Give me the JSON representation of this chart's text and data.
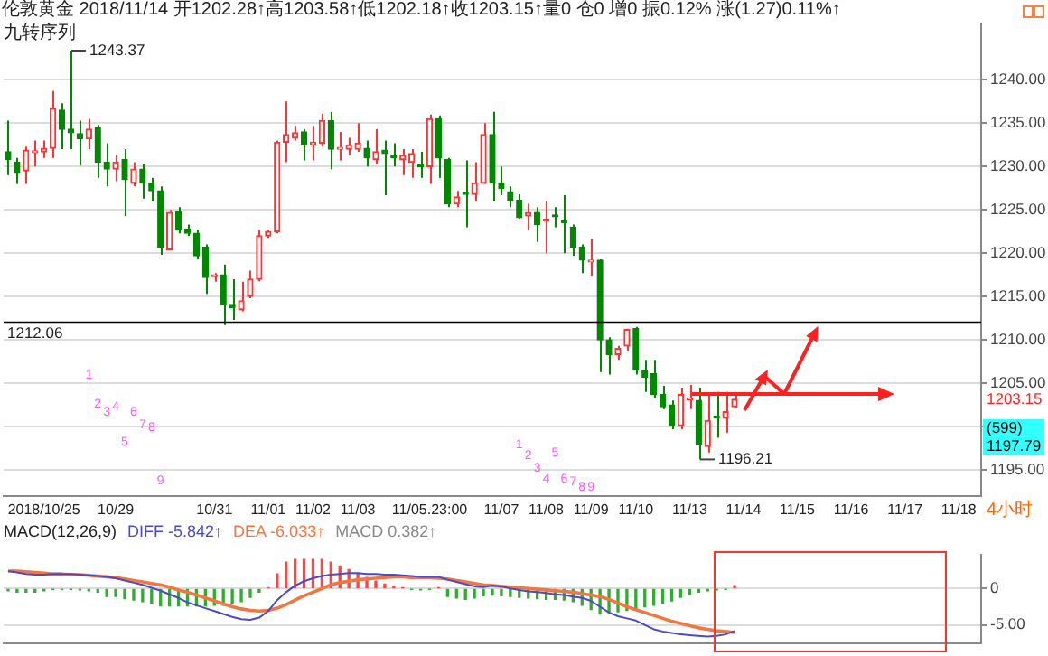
{
  "chart_data": [
    {
      "type": "candlestick",
      "title": "伦敦黄金 2018/11/14 开1202.28↑高1203.58↑低1202.18↑收1203.15↑量0 仓0 增0 振0.12% 涨(1.27)0.11%↑",
      "subtitle": "九转序列",
      "categories": [
        null,
        null,
        null,
        null,
        "2018/10/25",
        null,
        null,
        null,
        null,
        null,
        null,
        null,
        "10/29",
        null,
        null,
        null,
        null,
        null,
        null,
        null,
        null,
        null,
        null,
        "10/31",
        null,
        null,
        null,
        null,
        null,
        "11/01",
        null,
        null,
        null,
        null,
        "11/02",
        null,
        null,
        null,
        null,
        "11/03",
        null,
        null,
        null,
        null,
        null,
        null,
        null,
        "11/05.23:00",
        null,
        null,
        null,
        null,
        null,
        null,
        null,
        "11/07",
        null,
        null,
        null,
        null,
        "11/08",
        null,
        null,
        null,
        null,
        "11/09",
        null,
        null,
        null,
        null,
        "11/10",
        null,
        null,
        null,
        null,
        null,
        "11/13",
        null,
        null,
        null,
        null,
        null,
        "11/14",
        null,
        null,
        null,
        null,
        null,
        "11/15",
        null,
        null,
        null,
        null,
        null,
        "11/16",
        null,
        null,
        null,
        null,
        null,
        "11/17",
        null,
        null,
        null,
        null,
        null,
        "11/18",
        null,
        null
      ],
      "ohlc": [
        [
          1231.7,
          1235.3,
          1229.0,
          1230.8
        ],
        [
          1230.5,
          1231.0,
          1228.0,
          1229.2
        ],
        [
          1229.5,
          1232.3,
          1228.0,
          1231.9
        ],
        [
          1231.6,
          1233.0,
          1230.0,
          1231.7
        ],
        [
          1231.7,
          1233.0,
          1231.0,
          1232.1
        ],
        [
          1232.1,
          1238.7,
          1231.0,
          1236.7
        ],
        [
          1236.5,
          1237.3,
          1232.0,
          1234.3
        ],
        [
          1234.3,
          1243.37,
          1232.0,
          1233.9
        ],
        [
          1233.8,
          1235.3,
          1230.1,
          1233.2
        ],
        [
          1233.2,
          1235.5,
          1232.0,
          1234.3
        ],
        [
          1234.5,
          1234.8,
          1228.7,
          1230.5
        ],
        [
          1230.5,
          1232.7,
          1227.7,
          1229.7
        ],
        [
          1229.7,
          1231.3,
          1228.3,
          1230.5
        ],
        [
          1230.8,
          1232.0,
          1224.3,
          1228.5
        ],
        [
          1228.1,
          1230.5,
          1227.7,
          1229.7
        ],
        [
          1229.7,
          1230.3,
          1226.3,
          1228.1
        ],
        [
          1228.1,
          1228.7,
          1226.0,
          1227.2
        ],
        [
          1227.2,
          1227.7,
          1219.8,
          1220.7
        ],
        [
          1220.4,
          1225.0,
          1220.4,
          1224.7
        ],
        [
          1224.8,
          1225.3,
          1222.3,
          1222.7
        ],
        [
          1222.8,
          1223.3,
          1222.0,
          1222.3
        ],
        [
          1222.3,
          1222.7,
          1219.3,
          1219.7
        ],
        [
          1220.7,
          1221.0,
          1215.3,
          1217.2
        ],
        [
          1217.3,
          1217.7,
          1216.7,
          1217.5
        ],
        [
          1217.5,
          1218.7,
          1211.7,
          1214.1
        ],
        [
          1214.1,
          1217.0,
          1212.3,
          1213.7
        ],
        [
          1213.5,
          1216.7,
          1213.3,
          1214.5
        ],
        [
          1215.0,
          1218.0,
          1214.8,
          1217.0
        ],
        [
          1217.0,
          1222.7,
          1216.8,
          1222.0
        ],
        [
          1222.0,
          1222.7,
          1221.8,
          1222.5
        ],
        [
          1222.5,
          1233.0,
          1222.3,
          1232.8
        ],
        [
          1232.8,
          1237.5,
          1230.5,
          1233.7
        ],
        [
          1233.3,
          1234.7,
          1233.0,
          1233.9
        ],
        [
          1234.0,
          1234.3,
          1230.7,
          1232.5
        ],
        [
          1232.5,
          1234.7,
          1230.7,
          1232.8
        ],
        [
          1232.7,
          1236.1,
          1232.3,
          1235.3
        ],
        [
          1235.3,
          1236.3,
          1229.7,
          1232.0
        ],
        [
          1232.0,
          1234.0,
          1230.7,
          1232.1
        ],
        [
          1232.0,
          1233.3,
          1231.3,
          1232.5
        ],
        [
          1232.0,
          1235.0,
          1231.7,
          1232.7
        ],
        [
          1232.1,
          1233.0,
          1230.0,
          1231.0
        ],
        [
          1230.8,
          1234.3,
          1230.3,
          1231.7
        ],
        [
          1231.9,
          1233.0,
          1226.7,
          1231.5
        ],
        [
          1231.3,
          1232.7,
          1230.0,
          1231.0
        ],
        [
          1230.8,
          1232.0,
          1229.0,
          1231.3
        ],
        [
          1230.5,
          1232.0,
          1228.7,
          1231.5
        ],
        [
          1230.1,
          1231.7,
          1228.7,
          1230.0
        ],
        [
          1230.0,
          1236.0,
          1228.0,
          1235.5
        ],
        [
          1235.5,
          1235.9,
          1228.7,
          1231.0
        ],
        [
          1230.8,
          1231.0,
          1225.3,
          1225.7
        ],
        [
          1225.7,
          1227.2,
          1225.3,
          1226.5
        ],
        [
          1227.0,
          1230.7,
          1223.0,
          1226.8
        ],
        [
          1226.8,
          1230.5,
          1226.0,
          1228.1
        ],
        [
          1228.1,
          1235.0,
          1228.0,
          1233.7
        ],
        [
          1233.7,
          1236.3,
          1226.0,
          1228.1
        ],
        [
          1228.1,
          1230.0,
          1226.7,
          1227.5
        ],
        [
          1227.1,
          1227.7,
          1225.3,
          1226.1
        ],
        [
          1226.1,
          1226.8,
          1224.0,
          1224.1
        ],
        [
          1224.3,
          1225.7,
          1222.7,
          1224.7
        ],
        [
          1224.7,
          1225.3,
          1221.3,
          1223.3
        ],
        [
          1223.7,
          1226.0,
          1220.0,
          1223.9
        ],
        [
          1224.3,
          1225.3,
          1223.0,
          1224.2
        ],
        [
          1223.7,
          1226.7,
          1220.0,
          1223.5
        ],
        [
          1223.0,
          1223.3,
          1219.7,
          1220.7
        ],
        [
          1220.7,
          1221.0,
          1217.7,
          1219.2
        ],
        [
          1219.0,
          1221.7,
          1217.3,
          1219.2
        ],
        [
          1219.2,
          1219.3,
          1206.3,
          1210.0
        ],
        [
          1210.0,
          1210.3,
          1206.0,
          1208.3
        ],
        [
          1208.3,
          1209.3,
          1207.7,
          1209.0
        ],
        [
          1209.3,
          1211.3,
          1208.7,
          1211.2
        ],
        [
          1211.3,
          1211.5,
          1206.0,
          1206.5
        ],
        [
          1206.5,
          1207.7,
          1204.0,
          1205.7
        ],
        [
          1206.1,
          1207.7,
          1203.3,
          1203.7
        ],
        [
          1203.7,
          1204.7,
          1202.0,
          1202.3
        ],
        [
          1202.5,
          1203.0,
          1199.7,
          1200.1
        ],
        [
          1200.1,
          1204.5,
          1199.7,
          1203.7
        ],
        [
          1203.1,
          1204.8,
          1202.0,
          1203.2
        ],
        [
          1203.0,
          1204.5,
          1196.21,
          1198.0
        ],
        [
          1197.7,
          1203.7,
          1197.0,
          1200.7
        ],
        [
          1201.1,
          1204.0,
          1198.7,
          1201.0
        ],
        [
          1201.0,
          1204.0,
          1199.3,
          1201.7
        ],
        [
          1202.28,
          1203.58,
          1202.18,
          1203.15
        ],
        null,
        null,
        null,
        null,
        null,
        null,
        null,
        null,
        null,
        null,
        null,
        null,
        null,
        null,
        null,
        null,
        null,
        null,
        null,
        null,
        null,
        null,
        null,
        null,
        null,
        null,
        null
      ],
      "colors": [
        "#008800",
        "#008800",
        "#ff3333",
        "#ff3333",
        "#ff3333",
        "#ff3333",
        "#008800",
        "#008800",
        "#008800",
        "#ff3333",
        "#008800",
        "#008800",
        "#ff3333",
        "#008800",
        "#ff3333",
        "#008800",
        "#008800",
        "#008800",
        "#ff3333",
        "#008800",
        "#008800",
        "#008800",
        "#008800",
        "#ff3333",
        "#008800",
        "#008800",
        "#ff3333",
        "#ff3333",
        "#ff3333",
        "#ff3333",
        "#ff3333",
        "#ff3333",
        "#ff3333",
        "#008800",
        "#ff3333",
        "#ff3333",
        "#008800",
        "#ff3333",
        "#ff3333",
        "#ff3333",
        "#008800",
        "#ff3333",
        "#008800",
        "#008800",
        "#ff3333",
        "#ff3333",
        "#008800",
        "#ff3333",
        "#008800",
        "#008800",
        "#ff3333",
        "#008800",
        "#ff3333",
        "#ff3333",
        "#008800",
        "#008800",
        "#008800",
        "#008800",
        "#ff3333",
        "#008800",
        "#ff3333",
        "#008800",
        "#008800",
        "#008800",
        "#008800",
        "#ff3333",
        "#008800",
        "#008800",
        "#ff3333",
        "#ff3333",
        "#008800",
        "#008800",
        "#008800",
        "#008800",
        "#008800",
        "#ff3333",
        "#ff3333",
        "#008800",
        "#ff3333",
        "#008800",
        "#ff3333",
        "#ff3333",
        null,
        null,
        null,
        null,
        null,
        null,
        null,
        null,
        null,
        null,
        null,
        null,
        null,
        null,
        null,
        null,
        null,
        null,
        null,
        null,
        null,
        null,
        null,
        null,
        null,
        null,
        null
      ],
      "value_labels": [
        null,
        null,
        null,
        null,
        null,
        null,
        null,
        null,
        null,
        "1",
        "2",
        "3",
        "4",
        "5",
        "6",
        "7",
        "8",
        "9",
        null,
        null,
        null,
        null,
        null,
        null,
        null,
        null,
        null,
        null,
        null,
        null,
        null,
        null,
        null,
        null,
        null,
        null,
        null,
        null,
        null,
        null,
        null,
        null,
        null,
        null,
        null,
        null,
        null,
        null,
        null,
        null,
        null,
        null,
        null,
        null,
        null,
        null,
        null,
        "1",
        "2",
        "3",
        "4",
        "5",
        "6",
        "7",
        "8",
        "9",
        null,
        null,
        null,
        null,
        null,
        null,
        null,
        null,
        null,
        null,
        null,
        null,
        null,
        null,
        null,
        null,
        null,
        null,
        null,
        null,
        null,
        null,
        null,
        null,
        null,
        null,
        null,
        null,
        null,
        null,
        null,
        null,
        null,
        null,
        null,
        null,
        null,
        null,
        null,
        null,
        null,
        null,
        null
      ],
      "ylim": [
        1192,
        1246.5
      ],
      "yticks": [
        {
          "value": 1195,
          "label": "1195.00"
        },
        {
          "value": 1200,
          "label": null
        },
        {
          "value": 1205,
          "label": "1205.00"
        },
        {
          "value": 1210,
          "label": "1210.00"
        },
        {
          "value": 1215,
          "label": "1215.00"
        },
        {
          "value": 1220,
          "label": "1220.00"
        },
        {
          "value": 1225,
          "label": "1225.00"
        },
        {
          "value": 1230,
          "label": "1230.00"
        },
        {
          "value": 1235,
          "label": "1235.00"
        },
        {
          "value": 1240,
          "label": "1240.00"
        }
      ],
      "grid": "y",
      "ref_lines": [
        {
          "axis": "y",
          "value": 1212.06,
          "label": "1212.06",
          "color": "#000000"
        }
      ],
      "annotations": [
        "1243.37",
        "1196.21",
        "1203.15",
        "(599)",
        "1197.79",
        "4小时"
      ]
    },
    {
      "type": "bar",
      "title": "MACD(12,26,9)",
      "categories": [
        null,
        null,
        null,
        null,
        null,
        null,
        null,
        null,
        null,
        null,
        null,
        null,
        null,
        null,
        null,
        null,
        null,
        null,
        null,
        null,
        null,
        null,
        null,
        null,
        null,
        null,
        null,
        null,
        null,
        null,
        null,
        null,
        null,
        null,
        null,
        null,
        null,
        null,
        null,
        null,
        null,
        null,
        null,
        null,
        null,
        null,
        null,
        null,
        null,
        null,
        null,
        null,
        null,
        null,
        null,
        null,
        null,
        null,
        null,
        null,
        null,
        null,
        null,
        null,
        null,
        null,
        null,
        null,
        null,
        null,
        null,
        null,
        null,
        null,
        null,
        null,
        null,
        null,
        null,
        null,
        null,
        null,
        null,
        null,
        null,
        null,
        null,
        null,
        null,
        null,
        null,
        null,
        null,
        null,
        null,
        null,
        null,
        null,
        null,
        null,
        null,
        null,
        null,
        null,
        null,
        null,
        null,
        null,
        null
      ],
      "series": [
        {
          "name": "DIFF -5.842↑",
          "type": "line",
          "color": "#4a4acc",
          "values": [
            2.4,
            2.2,
            2.0,
            1.9,
            1.9,
            2.0,
            2.0,
            2.0,
            1.9,
            1.8,
            1.7,
            1.6,
            1.4,
            1.1,
            0.8,
            0.5,
            0.1,
            -0.3,
            -0.8,
            -1.3,
            -1.9,
            -2.3,
            -2.7,
            -3.1,
            -3.5,
            -3.9,
            -4.2,
            -4.3,
            -4.0,
            -3.1,
            -1.6,
            -0.5,
            0.4,
            1.0,
            1.4,
            1.7,
            1.9,
            2.0,
            2.1,
            2.1,
            2.0,
            2.0,
            1.9,
            1.9,
            1.8,
            1.7,
            1.6,
            1.6,
            1.6,
            1.2,
            0.9,
            0.6,
            0.3,
            0.2,
            0.4,
            0.3,
            0.0,
            -0.2,
            -0.4,
            -0.5,
            -0.6,
            -0.8,
            -0.9,
            -1.1,
            -1.3,
            -1.7,
            -2.5,
            -3.3,
            -3.8,
            -4.1,
            -4.4,
            -5.0,
            -5.6,
            -5.9,
            -6.1,
            -6.3,
            -6.4,
            -6.5,
            -6.6,
            -6.5,
            -6.3,
            -5.842,
            null,
            null,
            null,
            null,
            null,
            null,
            null,
            null,
            null,
            null,
            null,
            null,
            null,
            null,
            null,
            null,
            null,
            null,
            null,
            null,
            null,
            null,
            null,
            null,
            null,
            null,
            null
          ]
        },
        {
          "name": "DEA -6.033↑",
          "type": "line",
          "color": "#f07840",
          "values": [
            2.4,
            2.4,
            2.3,
            2.2,
            2.1,
            2.0,
            2.0,
            1.9,
            1.9,
            1.8,
            1.7,
            1.6,
            1.5,
            1.3,
            1.1,
            0.9,
            0.7,
            0.5,
            0.2,
            -0.2,
            -0.5,
            -0.9,
            -1.3,
            -1.7,
            -2.1,
            -2.5,
            -2.8,
            -3.0,
            -3.1,
            -3.0,
            -2.7,
            -2.2,
            -1.6,
            -1.0,
            -0.5,
            0.0,
            0.5,
            0.8,
            1.0,
            1.2,
            1.3,
            1.4,
            1.5,
            1.6,
            1.6,
            1.5,
            1.5,
            1.5,
            1.4,
            1.3,
            1.1,
            0.9,
            0.7,
            0.5,
            0.4,
            0.3,
            0.2,
            0.1,
            0.0,
            -0.1,
            -0.2,
            -0.3,
            -0.4,
            -0.5,
            -0.7,
            -0.9,
            -1.1,
            -1.5,
            -2.0,
            -2.5,
            -2.9,
            -3.3,
            -3.7,
            -4.1,
            -4.5,
            -4.8,
            -5.1,
            -5.4,
            -5.6,
            -5.8,
            -5.9,
            -6.033,
            null,
            null,
            null,
            null,
            null,
            null,
            null,
            null,
            null,
            null,
            null,
            null,
            null,
            null,
            null,
            null,
            null,
            null,
            null,
            null,
            null,
            null,
            null,
            null,
            null,
            null,
            null
          ]
        },
        {
          "name": "MACD 0.382↑",
          "type": "bar",
          "values": [
            -0.3,
            -0.5,
            -0.5,
            -0.5,
            -0.3,
            -0.1,
            -0.1,
            -0.1,
            -0.2,
            -0.3,
            -0.5,
            -1.1,
            -1.1,
            -1.4,
            -1.6,
            -1.8,
            -2.0,
            -2.4,
            -2.4,
            -2.4,
            -2.4,
            -2.4,
            -2.4,
            -2.3,
            -2.3,
            -2.0,
            -1.8,
            -1.2,
            -0.5,
            0.1,
            2.0,
            3.6,
            4.0,
            4.0,
            4.0,
            4.0,
            3.6,
            3.1,
            2.6,
            2.0,
            1.5,
            1.0,
            0.6,
            0.3,
            0.1,
            -0.1,
            -0.2,
            -0.1,
            0.1,
            -1.1,
            -1.3,
            -1.5,
            -1.3,
            -1.0,
            -0.9,
            -1.0,
            -1.1,
            -1.2,
            -1.3,
            -1.4,
            -1.5,
            -1.5,
            -1.6,
            -1.8,
            -2.3,
            -2.9,
            -3.5,
            -3.3,
            -3.2,
            -3.0,
            -2.8,
            -2.5,
            -2.3,
            -2.0,
            -1.7,
            -1.2,
            -0.8,
            -0.5,
            -0.3,
            -0.2,
            -0.1,
            0.382,
            null,
            null,
            null,
            null,
            null,
            null,
            null,
            null,
            null,
            null,
            null,
            null,
            null,
            null,
            null,
            null,
            null,
            null,
            null,
            null,
            null,
            null,
            null,
            null,
            null,
            null,
            null
          ],
          "colors": [
            "#33aa33",
            "#33aa33",
            "#33aa33",
            "#33aa33",
            "#33aa33",
            "#33aa33",
            "#33aa33",
            "#33aa33",
            "#33aa33",
            "#33aa33",
            "#33aa33",
            "#33aa33",
            "#33aa33",
            "#33aa33",
            "#33aa33",
            "#33aa33",
            "#33aa33",
            "#33aa33",
            "#33aa33",
            "#33aa33",
            "#33aa33",
            "#33aa33",
            "#33aa33",
            "#33aa33",
            "#33aa33",
            "#33aa33",
            "#33aa33",
            "#33aa33",
            "#33aa33",
            "#ff4444",
            "#ff4444",
            "#ff4444",
            "#ff4444",
            "#ff4444",
            "#ff4444",
            "#ff4444",
            "#ff4444",
            "#ff4444",
            "#ff4444",
            "#ff4444",
            "#ff4444",
            "#ff4444",
            "#ff4444",
            "#ff4444",
            "#ff4444",
            "#33aa33",
            "#33aa33",
            "#33aa33",
            "#ff4444",
            "#33aa33",
            "#33aa33",
            "#33aa33",
            "#33aa33",
            "#33aa33",
            "#33aa33",
            "#33aa33",
            "#33aa33",
            "#33aa33",
            "#33aa33",
            "#33aa33",
            "#33aa33",
            "#33aa33",
            "#33aa33",
            "#33aa33",
            "#33aa33",
            "#33aa33",
            "#33aa33",
            "#33aa33",
            "#33aa33",
            "#33aa33",
            "#33aa33",
            "#33aa33",
            "#33aa33",
            "#33aa33",
            "#33aa33",
            "#33aa33",
            "#33aa33",
            "#33aa33",
            "#33aa33",
            "#33aa33",
            "#33aa33",
            "#ff4444",
            null,
            null,
            null,
            null,
            null,
            null,
            null,
            null,
            null,
            null,
            null,
            null,
            null,
            null,
            null,
            null,
            null,
            null,
            null,
            null,
            null,
            null,
            null,
            null,
            null,
            null,
            null
          ]
        }
      ],
      "ylim": [
        -7.5,
        4.6
      ],
      "yticks": [
        {
          "value": -5,
          "label": "-5.00"
        },
        0
      ],
      "grid": "y",
      "tick_labels": "y",
      "legend": "top left",
      "marker": "none"
    }
  ]
}
